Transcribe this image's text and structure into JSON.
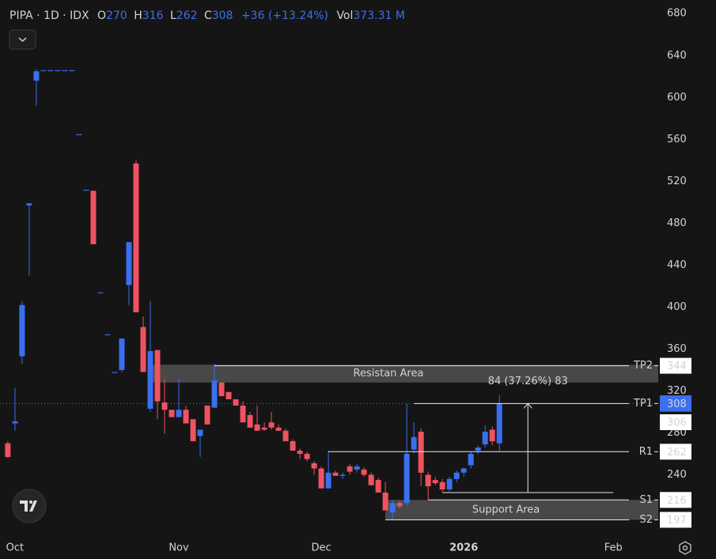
{
  "header": {
    "symbol": "PIPA · 1D · IDX",
    "open_label": "O",
    "open": 270,
    "high_label": "H",
    "high": 316,
    "low_label": "L",
    "low": 262,
    "close_label": "C",
    "close": 308,
    "change": "+36 (+13.24%)",
    "volume_label": "Vol",
    "volume": "373.31 M"
  },
  "chart_data": {
    "type": "candlestick",
    "up_color": "#3a6ff0",
    "down_color": "#ef5361",
    "x": [
      0,
      1,
      2,
      3,
      4,
      5,
      6,
      7,
      8,
      9,
      10,
      11,
      12,
      13,
      14,
      15,
      16,
      17,
      18,
      19,
      20,
      21,
      22,
      23,
      24,
      25,
      26,
      27,
      28,
      29,
      30,
      31,
      32,
      33,
      34,
      35,
      36,
      37,
      38,
      39,
      40,
      41,
      42,
      43,
      44,
      45,
      46,
      47,
      48,
      49,
      50,
      51,
      52,
      53,
      54,
      55,
      56,
      57,
      58,
      59,
      60,
      61,
      62,
      63,
      64,
      65,
      66,
      67,
      68,
      69
    ],
    "open": [
      270,
      289,
      353,
      497,
      616,
      626,
      626,
      626,
      626,
      626,
      565,
      512,
      511,
      414,
      374,
      338,
      340,
      421,
      537,
      381,
      303,
      359,
      309,
      302,
      295,
      302,
      293,
      277,
      306,
      304,
      328,
      319,
      312,
      306,
      297,
      288,
      285,
      290,
      285,
      282,
      272,
      263,
      260,
      251,
      246,
      227,
      242,
      239,
      248,
      245,
      245,
      240,
      235,
      223,
      204,
      213,
      213,
      264,
      281,
      240,
      235,
      233,
      226,
      236,
      242,
      249,
      263,
      269,
      283,
      270
    ],
    "high": [
      272,
      323,
      406,
      499,
      627,
      626,
      626,
      626,
      626,
      626,
      565,
      512,
      511,
      414,
      374,
      338,
      370,
      462,
      540,
      391,
      406,
      359,
      331,
      302,
      331,
      306,
      293,
      283,
      306,
      346,
      328,
      319,
      312,
      310,
      300,
      306,
      290,
      300,
      288,
      284,
      274,
      265,
      262,
      253,
      248,
      263,
      244,
      242,
      250,
      250,
      247,
      242,
      237,
      233,
      216,
      215,
      308,
      290,
      284,
      243,
      238,
      236,
      238,
      244,
      247,
      262,
      268,
      287,
      286,
      316
    ],
    "low": [
      256,
      282,
      346,
      430,
      592,
      626,
      626,
      626,
      626,
      626,
      565,
      512,
      460,
      414,
      374,
      338,
      338,
      402,
      395,
      338,
      300,
      293,
      279,
      295,
      295,
      289,
      272,
      257,
      288,
      304,
      315,
      312,
      306,
      290,
      285,
      282,
      282,
      283,
      282,
      272,
      263,
      255,
      253,
      240,
      227,
      227,
      239,
      236,
      240,
      242,
      238,
      230,
      223,
      206,
      197,
      208,
      210,
      260,
      229,
      216,
      230,
      224,
      224,
      233,
      238,
      246,
      260,
      266,
      268,
      262
    ],
    "close": [
      257,
      291,
      402,
      499,
      625,
      626,
      626,
      626,
      626,
      626,
      565,
      512,
      460,
      414,
      374,
      338,
      370,
      462,
      395,
      338,
      358,
      310,
      302,
      295,
      302,
      289,
      272,
      283,
      288,
      330,
      315,
      312,
      306,
      290,
      285,
      282,
      283,
      285,
      282,
      272,
      263,
      260,
      255,
      246,
      227,
      242,
      239,
      240,
      243,
      248,
      240,
      230,
      223,
      206,
      213,
      210,
      260,
      276,
      242,
      229,
      232,
      226,
      236,
      242,
      246,
      260,
      266,
      281,
      272,
      308
    ],
    "xlim": [
      -1.1,
      91.3
    ],
    "ylim": [
      180,
      693
    ],
    "xticks": [
      {
        "value": 1,
        "label": "Oct"
      },
      {
        "value": 24,
        "label": "Nov"
      },
      {
        "value": 44,
        "label": "Dec"
      },
      {
        "value": 64,
        "label": "2026"
      },
      {
        "value": 85,
        "label": "Feb"
      }
    ],
    "yticks": [
      240,
      280,
      320,
      360,
      400,
      440,
      480,
      520,
      560,
      600,
      640,
      680
    ],
    "areas": [
      {
        "label": "Resistan Area",
        "from": 328,
        "to": 345
      },
      {
        "label": "Support Area",
        "from": 197,
        "to": 216
      }
    ],
    "levels": [
      {
        "label": "TP2",
        "value": 344
      },
      {
        "label": "TP1",
        "value": 308
      },
      {
        "label": "R1",
        "value": 262
      },
      {
        "label": "S1",
        "value": 216
      },
      {
        "label": "S2",
        "value": 197
      }
    ],
    "measure": {
      "text": "84 (37.26%) 83",
      "from": 223,
      "to": 308
    },
    "last_price": 308,
    "prev_price": 306
  }
}
